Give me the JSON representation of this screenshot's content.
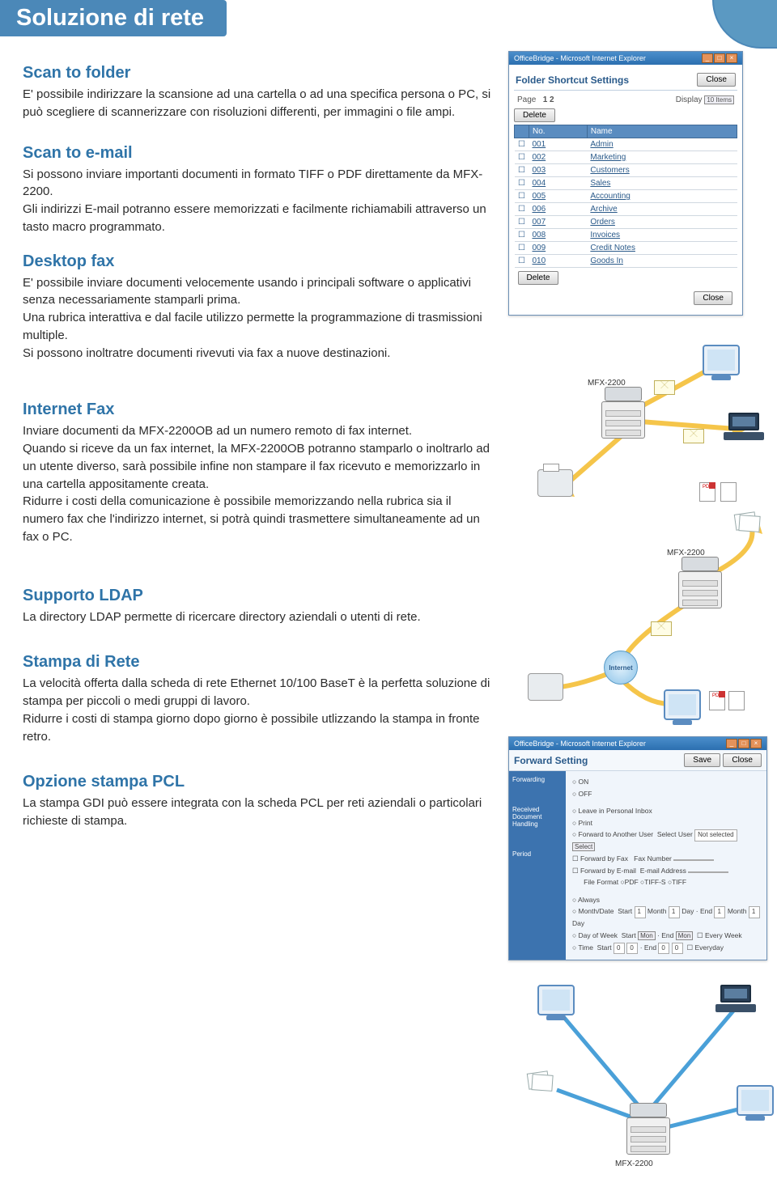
{
  "page": {
    "title": "Soluzione di rete",
    "title_bg": "#4b88b8",
    "heading_color": "#2f74a8"
  },
  "sections": {
    "scan_folder": {
      "title": "Scan to folder",
      "body": "E' possibile indirizzare la scansione ad una cartella o ad una specifica persona o PC,  si può scegliere di  scannerizzare con risoluzioni differenti, per immagini o file ampi."
    },
    "scan_email": {
      "title": "Scan to e-mail",
      "body": "Si possono inviare importanti documenti in formato TIFF o PDF direttamente da MFX-2200.\nGli indirizzi E-mail potranno essere memorizzati e facilmente richiamabili attraverso un tasto macro programmato."
    },
    "desktop_fax": {
      "title": "Desktop fax",
      "body": "E' possibile inviare documenti velocemente usando i principali software o applicativi  senza necessariamente stamparli prima.\nUna rubrica interattiva e dal facile utilizzo permette la programmazione di trasmissioni multiple.\nSi possono inoltratre documenti rivevuti via fax a nuove destinazioni."
    },
    "internet_fax": {
      "title": "Internet Fax",
      "body": "Inviare documenti da MFX-2200OB ad un numero remoto di fax internet.\nQuando si riceve da un fax internet, la MFX-2200OB potranno stamparlo o inoltrarlo ad un utente diverso, sarà possibile infine non stampare il fax ricevuto e memorizzarlo in una cartella appositamente creata.\nRidurre i costi della comunicazione è possibile memorizzando nella rubrica sia il numero fax che l'indirizzo internet, si potrà quindi trasmettere simultaneamente ad un fax o PC."
    },
    "ldap": {
      "title": "Supporto LDAP",
      "body": "La directory LDAP permette di ricercare directory aziendali o utenti di rete."
    },
    "stampa_rete": {
      "title": "Stampa di Rete",
      "body": "La velocità offerta dalla  scheda di rete Ethernet 10/100 BaseT è la perfetta soluzione di stampa per piccoli o medi  gruppi di lavoro.\nRidurre i costi di stampa giorno dopo giorno è possibile utlizzando la stampa in fronte retro."
    },
    "pcl": {
      "title": "Opzione stampa PCL",
      "body": "La stampa GDI può essere integrata con la scheda PCL per reti aziendali o particolari richieste di stampa."
    }
  },
  "folder_window": {
    "app_title": "OfficeBridge - Microsoft Internet Explorer",
    "heading": "Folder Shortcut Settings",
    "close_btn": "Close",
    "page_label": "Page",
    "page_value": "1 2",
    "display_label": "Display",
    "display_value": "10 Items",
    "delete_btn": "Delete",
    "columns": [
      "",
      "No.",
      "Name"
    ],
    "rows": [
      [
        "001",
        "Admin"
      ],
      [
        "002",
        "Marketing"
      ],
      [
        "003",
        "Customers"
      ],
      [
        "004",
        "Sales"
      ],
      [
        "005",
        "Accounting"
      ],
      [
        "006",
        "Archive"
      ],
      [
        "007",
        "Orders"
      ],
      [
        "008",
        "Invoices"
      ],
      [
        "009",
        "Credit Notes"
      ],
      [
        "010",
        "Goods In"
      ]
    ]
  },
  "forward_window": {
    "app_title": "OfficeBridge - Microsoft Internet Explorer",
    "heading": "Forward Setting",
    "save_btn": "Save",
    "close_btn": "Close",
    "side_labels": [
      "Forwarding",
      "Received Document Handling",
      "Period"
    ],
    "onoff": [
      "ON",
      "OFF"
    ],
    "opts": {
      "leave": "Leave in Personal Inbox",
      "print": "Print",
      "fwd_user": "Forward to Another User",
      "select_user_lbl": "Select User",
      "not_selected": "Not selected",
      "select_btn": "Select",
      "fwd_fax": "Forward by Fax",
      "faxnum_lbl": "Fax Number",
      "fwd_email": "Forward by E-mail",
      "email_lbl": "E-mail Address",
      "fileformat_lbl": "File Format",
      "formats": [
        "PDF",
        "TIFF-S",
        "TIFF"
      ],
      "always": "Always",
      "monthdate": "Month/Date",
      "start_lbl": "Start",
      "end_lbl": "End",
      "month_lbl": "Month",
      "day_lbl": "Day",
      "dow": "Day of Week",
      "dow_start": "Mon",
      "everyweek": "Every Week",
      "time": "Time",
      "everyday": "Everyday"
    }
  },
  "labels": {
    "mfx": "MFX-2200",
    "internet": "Internet",
    "pdf": "PDF"
  },
  "colors": {
    "line_yellow": "#f5c54a",
    "line_blue": "#4aa0d8",
    "win_header": "#5a8cc0",
    "win_side": "#3c73af"
  }
}
